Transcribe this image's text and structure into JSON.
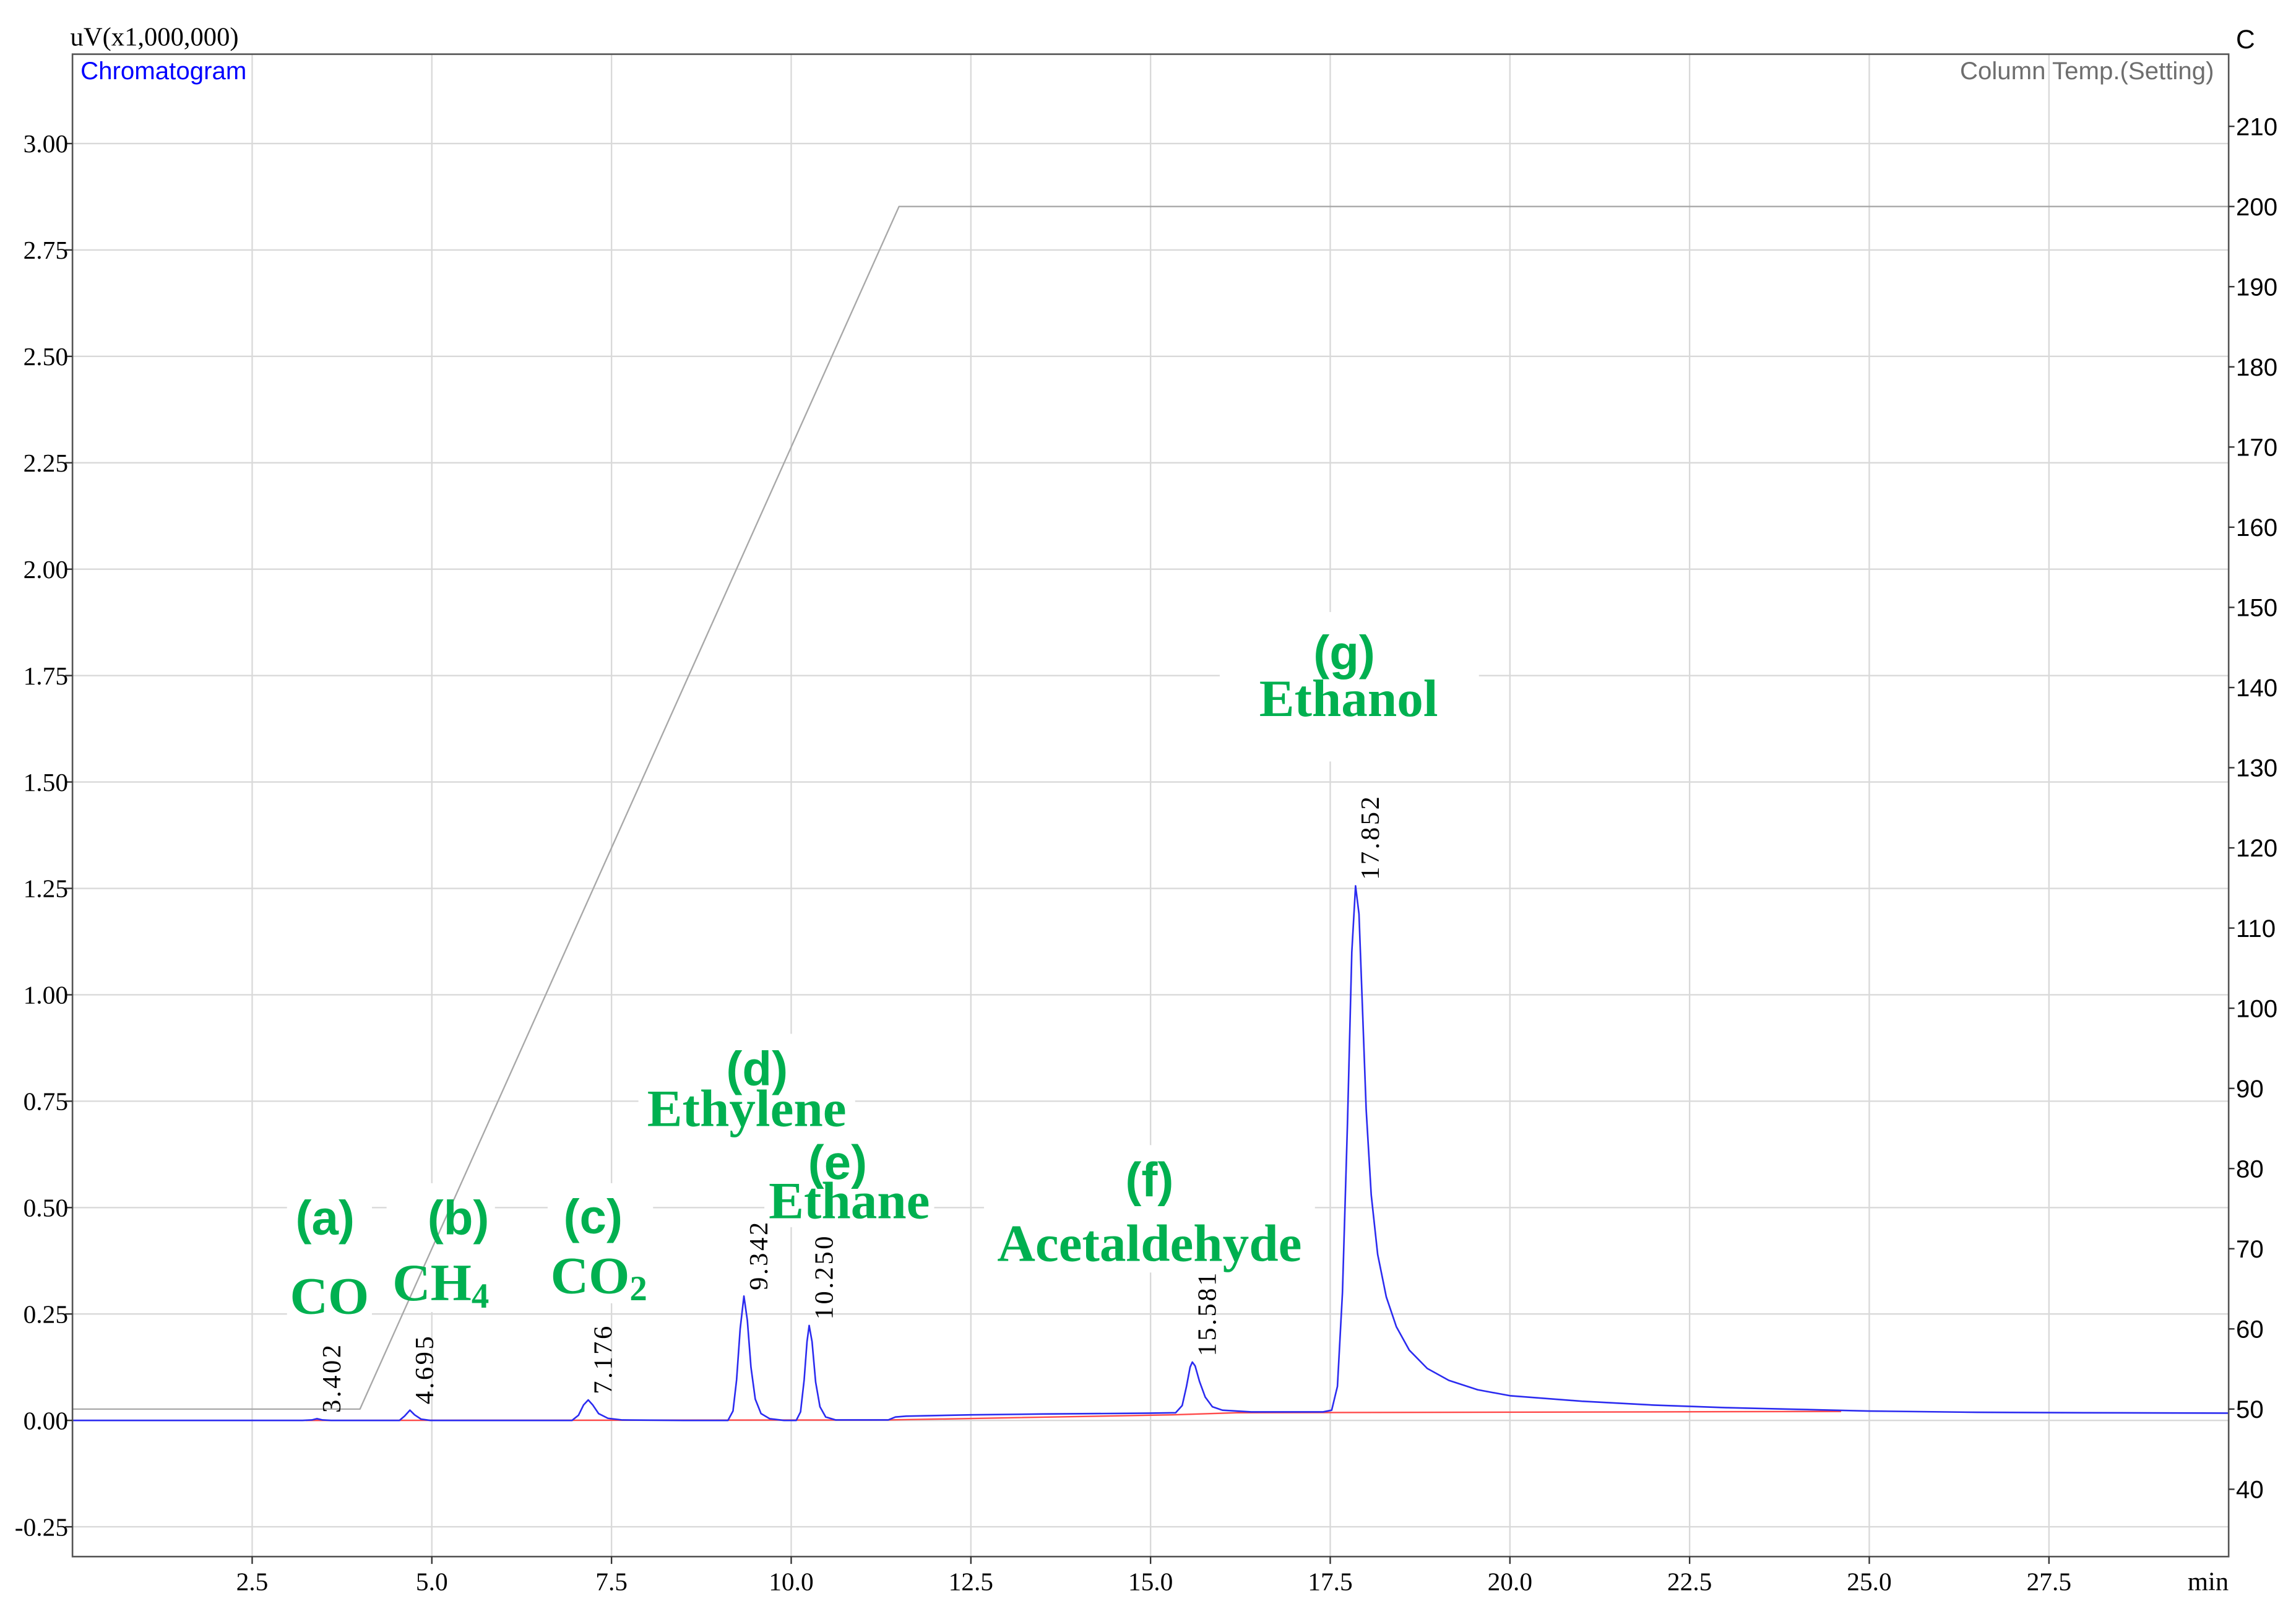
{
  "chart_data": {
    "type": "line",
    "xlabel": "min",
    "ylabel": "uV(x1,000,000)",
    "y2label": "C",
    "xlim": [
      0,
      30
    ],
    "ylim": [
      -0.32,
      3.21
    ],
    "y2lim": [
      31.6,
      219
    ],
    "grid": true,
    "x_ticks": [
      "2.5",
      "5.0",
      "7.5",
      "10.0",
      "12.5",
      "15.0",
      "17.5",
      "20.0",
      "22.5",
      "25.0",
      "27.5"
    ],
    "y_ticks": [
      "3.00",
      "2.75",
      "2.50",
      "2.25",
      "2.00",
      "1.75",
      "1.50",
      "1.25",
      "1.00",
      "0.75",
      "0.50",
      "0.25",
      "0.00",
      "-0.25"
    ],
    "y2_ticks": [
      "210",
      "200",
      "190",
      "180",
      "170",
      "160",
      "150",
      "140",
      "130",
      "120",
      "110",
      "100",
      "90",
      "80",
      "70",
      "60",
      "50",
      "40"
    ],
    "series": [
      {
        "name": "Chromatogram",
        "axis": "left",
        "color": "#2b2bf0",
        "points": [
          [
            0.0,
            0.0
          ],
          [
            3.2,
            0.0
          ],
          [
            3.33,
            0.001
          ],
          [
            3.402,
            0.004
          ],
          [
            3.48,
            0.001
          ],
          [
            3.6,
            0.0
          ],
          [
            4.55,
            0.0
          ],
          [
            4.62,
            0.01
          ],
          [
            4.695,
            0.024
          ],
          [
            4.76,
            0.013
          ],
          [
            4.85,
            0.003
          ],
          [
            4.98,
            0.0
          ],
          [
            6.95,
            0.0
          ],
          [
            7.04,
            0.012
          ],
          [
            7.11,
            0.036
          ],
          [
            7.176,
            0.048
          ],
          [
            7.24,
            0.036
          ],
          [
            7.32,
            0.016
          ],
          [
            7.45,
            0.005
          ],
          [
            7.65,
            0.001
          ],
          [
            8.5,
            0.0
          ],
          [
            9.12,
            0.0
          ],
          [
            9.19,
            0.022
          ],
          [
            9.24,
            0.095
          ],
          [
            9.29,
            0.215
          ],
          [
            9.342,
            0.292
          ],
          [
            9.39,
            0.235
          ],
          [
            9.44,
            0.125
          ],
          [
            9.5,
            0.05
          ],
          [
            9.58,
            0.016
          ],
          [
            9.7,
            0.004
          ],
          [
            9.9,
            0.0
          ],
          [
            10.07,
            0.0
          ],
          [
            10.13,
            0.02
          ],
          [
            10.18,
            0.095
          ],
          [
            10.22,
            0.185
          ],
          [
            10.25,
            0.223
          ],
          [
            10.29,
            0.185
          ],
          [
            10.34,
            0.09
          ],
          [
            10.4,
            0.032
          ],
          [
            10.48,
            0.008
          ],
          [
            10.62,
            0.001
          ],
          [
            11.35,
            0.001
          ],
          [
            11.45,
            0.008
          ],
          [
            11.6,
            0.01
          ],
          [
            12.5,
            0.013
          ],
          [
            13.5,
            0.015
          ],
          [
            15.0,
            0.017
          ],
          [
            15.35,
            0.018
          ],
          [
            15.44,
            0.035
          ],
          [
            15.5,
            0.08
          ],
          [
            15.55,
            0.125
          ],
          [
            15.581,
            0.137
          ],
          [
            15.62,
            0.128
          ],
          [
            15.68,
            0.092
          ],
          [
            15.76,
            0.055
          ],
          [
            15.86,
            0.032
          ],
          [
            16.0,
            0.024
          ],
          [
            16.4,
            0.02
          ],
          [
            17.4,
            0.02
          ],
          [
            17.52,
            0.024
          ],
          [
            17.6,
            0.08
          ],
          [
            17.67,
            0.3
          ],
          [
            17.74,
            0.7
          ],
          [
            17.8,
            1.1
          ],
          [
            17.852,
            1.256
          ],
          [
            17.9,
            1.19
          ],
          [
            17.95,
            0.96
          ],
          [
            18.0,
            0.73
          ],
          [
            18.07,
            0.53
          ],
          [
            18.16,
            0.39
          ],
          [
            18.28,
            0.29
          ],
          [
            18.42,
            0.22
          ],
          [
            18.6,
            0.165
          ],
          [
            18.85,
            0.122
          ],
          [
            19.15,
            0.094
          ],
          [
            19.55,
            0.072
          ],
          [
            20.0,
            0.058
          ],
          [
            21.0,
            0.045
          ],
          [
            22.0,
            0.036
          ],
          [
            23.0,
            0.03
          ],
          [
            24.0,
            0.026
          ],
          [
            25.0,
            0.022
          ],
          [
            26.5,
            0.019
          ],
          [
            28.0,
            0.018
          ],
          [
            30.0,
            0.017
          ]
        ]
      },
      {
        "name": "Column Temp.(Setting)",
        "axis": "right",
        "color": "#a8a8a8",
        "points": [
          [
            0,
            50
          ],
          [
            4.0,
            50
          ],
          [
            11.5,
            200
          ],
          [
            30,
            200
          ]
        ]
      },
      {
        "axis": "left",
        "color": "#ff4a4a",
        "points": [
          [
            3.25,
            0.0
          ],
          [
            11.35,
            0.001
          ],
          [
            15.3,
            0.013
          ],
          [
            16.2,
            0.018
          ],
          [
            24.6,
            0.021
          ]
        ]
      }
    ],
    "peak_labels": [
      {
        "label": "3.402",
        "rt": 3.402,
        "height": 0.004
      },
      {
        "label": "4.695",
        "rt": 4.695,
        "height": 0.024
      },
      {
        "label": "7.176",
        "rt": 7.176,
        "height": 0.048
      },
      {
        "label": "9.342",
        "rt": 9.342,
        "height": 0.292
      },
      {
        "label": "10.250",
        "rt": 10.25,
        "height": 0.223
      },
      {
        "label": "15.581",
        "rt": 15.581,
        "height": 0.137
      },
      {
        "label": "17.852",
        "rt": 17.852,
        "height": 1.256
      }
    ],
    "annotations": [
      {
        "letter": "(a)",
        "name": "CO"
      },
      {
        "letter": "(b)",
        "name": "CH",
        "subscript": "4"
      },
      {
        "letter": "(c)",
        "name": "CO",
        "subscript": "2"
      },
      {
        "letter": "(d)",
        "name": "Ethylene"
      },
      {
        "letter": "(e)",
        "name": "Ethane"
      },
      {
        "letter": "(f)",
        "name": "Acetaldehyde"
      },
      {
        "letter": "(g)",
        "name": "Ethanol"
      }
    ]
  },
  "colors": {
    "annotation": "#00B050",
    "chromatogram_label": "#0000FF",
    "temperature_label": "#6E6E6E",
    "grid": "#D9D9D9"
  }
}
